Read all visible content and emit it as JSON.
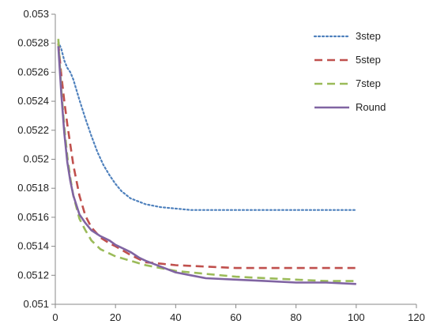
{
  "chart_data": {
    "type": "line",
    "title": "",
    "xlabel": "",
    "ylabel": "",
    "xlim": [
      0,
      120
    ],
    "ylim": [
      0.051,
      0.053
    ],
    "x_ticks": [
      "0",
      "20",
      "40",
      "60",
      "80",
      "100",
      "120"
    ],
    "y_ticks": [
      "0.051",
      "0.0512",
      "0.0514",
      "0.0516",
      "0.0518",
      "0.052",
      "0.0522",
      "0.0524",
      "0.0526",
      "0.0528",
      "0.053"
    ],
    "grid": false,
    "legend_position": "top-right",
    "series": [
      {
        "name": "3step",
        "color": "#4f81bd",
        "style": "dotted",
        "x": [
          1,
          2,
          3,
          4,
          5,
          6,
          8,
          10,
          12,
          14,
          16,
          18,
          20,
          22,
          25,
          30,
          35,
          40,
          45,
          50,
          60,
          70,
          80,
          90,
          100
        ],
        "y": [
          0.05281,
          0.05276,
          0.05268,
          0.05263,
          0.0526,
          0.05255,
          0.05241,
          0.05228,
          0.05216,
          0.05205,
          0.05196,
          0.05189,
          0.05183,
          0.05178,
          0.05173,
          0.05169,
          0.05167,
          0.05166,
          0.05165,
          0.05165,
          0.05165,
          0.05165,
          0.05165,
          0.05165,
          0.05165
        ]
      },
      {
        "name": "5step",
        "color": "#c0504d",
        "style": "dashed",
        "x": [
          1,
          2,
          3,
          4,
          5,
          6,
          8,
          10,
          12,
          15,
          18,
          20,
          25,
          30,
          35,
          40,
          50,
          60,
          70,
          80,
          90,
          100
        ],
        "y": [
          0.0528,
          0.05258,
          0.0524,
          0.05224,
          0.0521,
          0.05196,
          0.05175,
          0.05161,
          0.05153,
          0.05146,
          0.05142,
          0.0514,
          0.05134,
          0.05129,
          0.05128,
          0.05127,
          0.05126,
          0.05125,
          0.05125,
          0.05125,
          0.05125,
          0.05125
        ]
      },
      {
        "name": "7step",
        "color": "#9bbb59",
        "style": "dashed",
        "x": [
          1,
          2,
          3,
          4,
          5,
          6,
          8,
          10,
          12,
          15,
          20,
          25,
          30,
          40,
          50,
          60,
          70,
          80,
          90,
          100
        ],
        "y": [
          0.05283,
          0.05248,
          0.05222,
          0.05202,
          0.05187,
          0.05175,
          0.05159,
          0.05151,
          0.05144,
          0.05138,
          0.05133,
          0.0513,
          0.05127,
          0.05123,
          0.05121,
          0.05119,
          0.05118,
          0.05117,
          0.05116,
          0.05116
        ]
      },
      {
        "name": "Round",
        "color": "#8064a2",
        "style": "solid",
        "x": [
          1,
          2,
          3,
          4,
          5,
          6,
          8,
          10,
          12,
          15,
          18,
          20,
          22,
          25,
          28,
          30,
          35,
          40,
          45,
          50,
          60,
          70,
          80,
          90,
          100
        ],
        "y": [
          0.05278,
          0.05245,
          0.05218,
          0.05198,
          0.05185,
          0.05175,
          0.05162,
          0.05156,
          0.05151,
          0.05147,
          0.05144,
          0.05141,
          0.05139,
          0.05136,
          0.05132,
          0.0513,
          0.05126,
          0.05122,
          0.0512,
          0.05118,
          0.05117,
          0.05116,
          0.05115,
          0.05115,
          0.05114
        ]
      }
    ]
  }
}
